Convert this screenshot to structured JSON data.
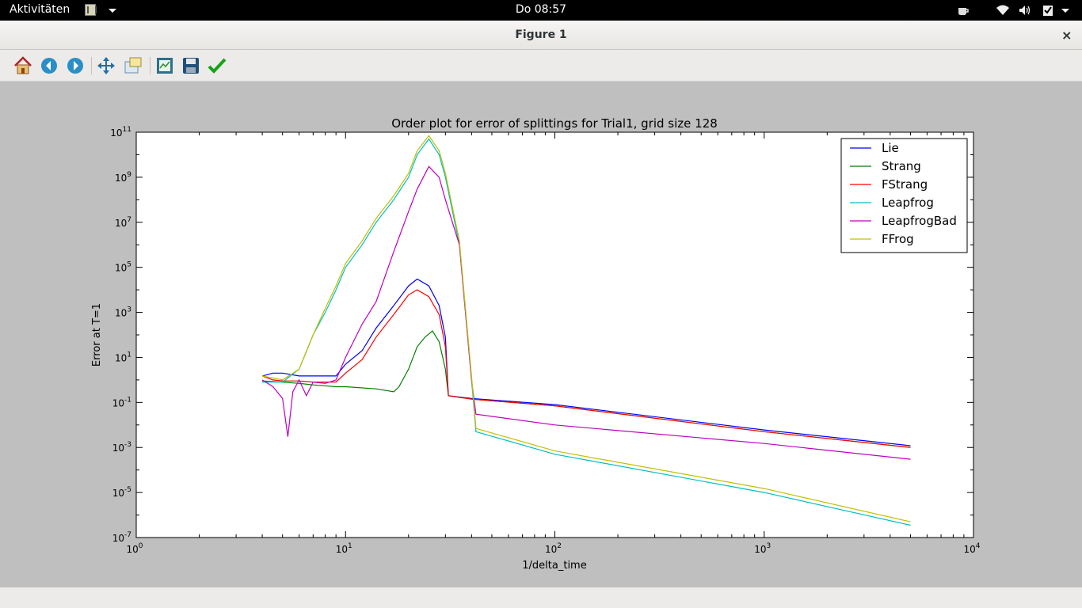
{
  "topbar": {
    "activities": "Aktivitäten",
    "clock": "Do 08:57",
    "tray_icons": [
      "coffee-cup-icon",
      "wifi-icon",
      "volume-icon",
      "clipboard-check-icon",
      "chevron-down-icon"
    ]
  },
  "window": {
    "title": "Figure 1",
    "close_label": "×"
  },
  "toolbar": {
    "buttons": [
      "home-icon",
      "back-arrow-icon",
      "forward-arrow-icon",
      "pan-move-icon",
      "zoom-rect-icon",
      "subplots-config-icon",
      "save-floppy-icon",
      "edit-check-icon"
    ]
  },
  "colors": {
    "Lie": "#0000ff",
    "Strang": "#008000",
    "FStrang": "#ff0000",
    "Leapfrog": "#00bfbf",
    "LeapfrogBad": "#bf00bf",
    "FFrog": "#bfbf00",
    "canvas_bg": "#bfbfbf"
  },
  "chart_data": {
    "type": "line",
    "title": "Order plot for error of splittings for Trial1, grid size 128",
    "xlabel": "1/delta_time",
    "ylabel": "Error at T=1",
    "xscale": "log",
    "yscale": "log",
    "xlim": [
      1,
      10000
    ],
    "ylim": [
      1e-07,
      100000000000.0
    ],
    "xticks": [
      {
        "value": 1,
        "base": "10",
        "exp": "0"
      },
      {
        "value": 10,
        "base": "10",
        "exp": "1"
      },
      {
        "value": 100,
        "base": "10",
        "exp": "2"
      },
      {
        "value": 1000,
        "base": "10",
        "exp": "3"
      },
      {
        "value": 10000,
        "base": "10",
        "exp": "4"
      }
    ],
    "yticks": [
      {
        "value": 100000000000.0,
        "base": "10",
        "exp": "11"
      },
      {
        "value": 1000000000.0,
        "base": "10",
        "exp": "9"
      },
      {
        "value": 10000000.0,
        "base": "10",
        "exp": "7"
      },
      {
        "value": 100000.0,
        "base": "10",
        "exp": "5"
      },
      {
        "value": 1000.0,
        "base": "10",
        "exp": "3"
      },
      {
        "value": 10,
        "base": "10",
        "exp": "1"
      },
      {
        "value": 0.1,
        "base": "10",
        "exp": "-1"
      },
      {
        "value": 0.001,
        "base": "10",
        "exp": "-3"
      },
      {
        "value": 1e-05,
        "base": "10",
        "exp": "-5"
      },
      {
        "value": 1e-07,
        "base": "10",
        "exp": "-7"
      }
    ],
    "legend_position": "top-right",
    "series": [
      {
        "name": "Lie",
        "x": [
          4,
          4.5,
          5,
          6,
          7,
          8,
          9,
          10,
          12,
          14,
          17,
          20,
          22,
          25,
          28,
          30,
          31,
          40,
          100,
          1000,
          5000
        ],
        "y": [
          1.5,
          2,
          2,
          1.5,
          1.5,
          1.5,
          1.5,
          5,
          20,
          200,
          2000,
          15000,
          30000,
          15000,
          2000,
          80,
          0.2,
          0.15,
          0.08,
          0.006,
          0.0012
        ]
      },
      {
        "name": "Strang",
        "x": [
          4,
          5,
          6,
          7,
          8,
          9,
          10,
          14,
          17,
          18,
          20,
          22,
          24,
          26,
          28,
          30,
          31,
          40,
          100,
          1000,
          5000
        ],
        "y": [
          0.9,
          0.8,
          0.7,
          0.6,
          0.55,
          0.5,
          0.5,
          0.4,
          0.3,
          0.5,
          3,
          30,
          80,
          150,
          50,
          3,
          0.2,
          0.14,
          0.07,
          0.005,
          0.001
        ]
      },
      {
        "name": "FStrang",
        "x": [
          4,
          4.5,
          5,
          6,
          7,
          8,
          9,
          10,
          12,
          14,
          17,
          20,
          22,
          25,
          28,
          30,
          31,
          40,
          100,
          1000,
          5000
        ],
        "y": [
          1.5,
          1,
          0.9,
          0.9,
          0.8,
          0.8,
          0.8,
          2,
          8,
          80,
          800,
          6000,
          10000,
          5000,
          800,
          30,
          0.2,
          0.14,
          0.07,
          0.005,
          0.001
        ]
      },
      {
        "name": "Leapfrog",
        "x": [
          4,
          5,
          6,
          7,
          8,
          9,
          10,
          12,
          14,
          17,
          20,
          22,
          25,
          28,
          30,
          35,
          40,
          42,
          100,
          1000,
          5000
        ],
        "y": [
          0.8,
          0.8,
          3,
          100,
          1000,
          10000.0,
          100000.0,
          1000000.0,
          10000000.0,
          100000000.0,
          1000000000.0,
          10000000000.0,
          50000000000.0,
          10000000000.0,
          1000000000.0,
          1000000.0,
          1,
          0.005,
          0.0005,
          1e-05,
          3.5e-07
        ]
      },
      {
        "name": "LeapfrogBad",
        "x": [
          4,
          4.5,
          5,
          5.3,
          5.6,
          6,
          6.5,
          7,
          8,
          9,
          10,
          12,
          14,
          17,
          20,
          22,
          25,
          28,
          30,
          35,
          40,
          42,
          100,
          1000,
          5000
        ],
        "y": [
          1,
          0.5,
          0.15,
          0.003,
          0.3,
          1,
          0.2,
          0.8,
          0.7,
          1,
          10,
          300,
          3000,
          500000.0,
          30000000.0,
          300000000.0,
          3000000000.0,
          1000000000.0,
          100000000.0,
          1000000.0,
          1,
          0.03,
          0.01,
          0.0015,
          0.0003
        ]
      },
      {
        "name": "FFrog",
        "x": [
          4,
          5,
          6,
          7,
          8,
          9,
          10,
          12,
          14,
          17,
          20,
          22,
          25,
          28,
          30,
          35,
          40,
          42,
          100,
          1000,
          5000
        ],
        "y": [
          1.5,
          1,
          3,
          100,
          1500,
          15000.0,
          150000.0,
          1500000.0,
          15000000.0,
          150000000.0,
          1500000000.0,
          15000000000.0,
          70000000000.0,
          15000000000.0,
          1500000000.0,
          1500000.0,
          1.5,
          0.007,
          0.0007,
          1.5e-05,
          5e-07
        ]
      }
    ]
  }
}
